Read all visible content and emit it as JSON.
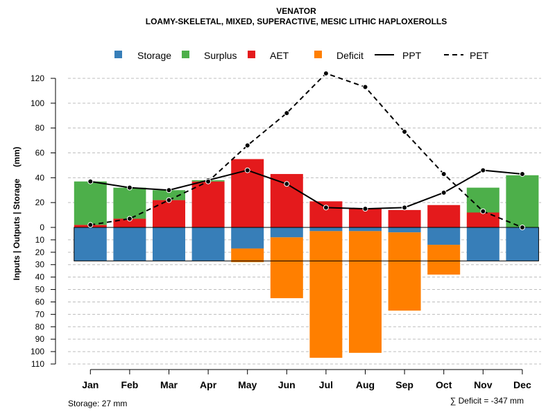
{
  "chart_data": {
    "type": "bar",
    "title": "VENATOR",
    "subtitle": "LOAMY-SKELETAL, MIXED, SUPERACTIVE, MESIC LITHIC HAPLOXEROLLS",
    "ylabel": "Inputs | Outputs | Storage     (mm)",
    "categories": [
      "Jan",
      "Feb",
      "Mar",
      "Apr",
      "May",
      "Jun",
      "Jul",
      "Aug",
      "Sep",
      "Oct",
      "Nov",
      "Dec"
    ],
    "ylim_upper": [
      0,
      130
    ],
    "ylim_lower": [
      0,
      110
    ],
    "upper_ticks": [
      "0",
      "20",
      "40",
      "60",
      "80",
      "100",
      "120"
    ],
    "lower_ticks": [
      "10",
      "20",
      "30",
      "40",
      "50",
      "60",
      "70",
      "80",
      "90",
      "100",
      "110"
    ],
    "legend": [
      "Storage",
      "Surplus",
      "AET",
      "Deficit",
      "PPT",
      "PET"
    ],
    "colors": {
      "storage": "#377EB8",
      "surplus": "#4DAF4A",
      "aet": "#E41A1C",
      "deficit": "#FF7F00",
      "ppt": "#000000",
      "pet": "#000000"
    },
    "upper_stack": [
      {
        "name": "AET",
        "values": [
          2,
          7,
          22,
          37,
          55,
          43,
          21,
          15,
          14,
          18,
          12,
          0
        ]
      },
      {
        "name": "Surplus",
        "values": [
          35,
          25,
          8,
          1,
          0,
          0,
          0,
          0,
          0,
          0,
          20,
          42
        ]
      }
    ],
    "lower_stack": [
      {
        "name": "Storage",
        "values": [
          27,
          27,
          27,
          27,
          17,
          8,
          3,
          3,
          4,
          14,
          27,
          27
        ]
      },
      {
        "name": "Deficit",
        "values": [
          0,
          0,
          0,
          0,
          11,
          49,
          102,
          98,
          63,
          24,
          0,
          0
        ]
      }
    ],
    "lines": [
      {
        "name": "PPT",
        "style": "solid",
        "values": [
          37,
          32,
          30,
          38,
          46,
          35,
          16,
          15,
          16,
          28,
          46,
          43
        ]
      },
      {
        "name": "PET",
        "style": "dashed",
        "values": [
          2,
          7,
          22,
          37,
          66,
          92,
          124,
          113,
          77,
          43,
          13,
          0
        ]
      }
    ],
    "storage_capacity": 27,
    "storage_label": "Storage: 27 mm",
    "deficit_label": "∑ Deficit = -347 mm"
  }
}
